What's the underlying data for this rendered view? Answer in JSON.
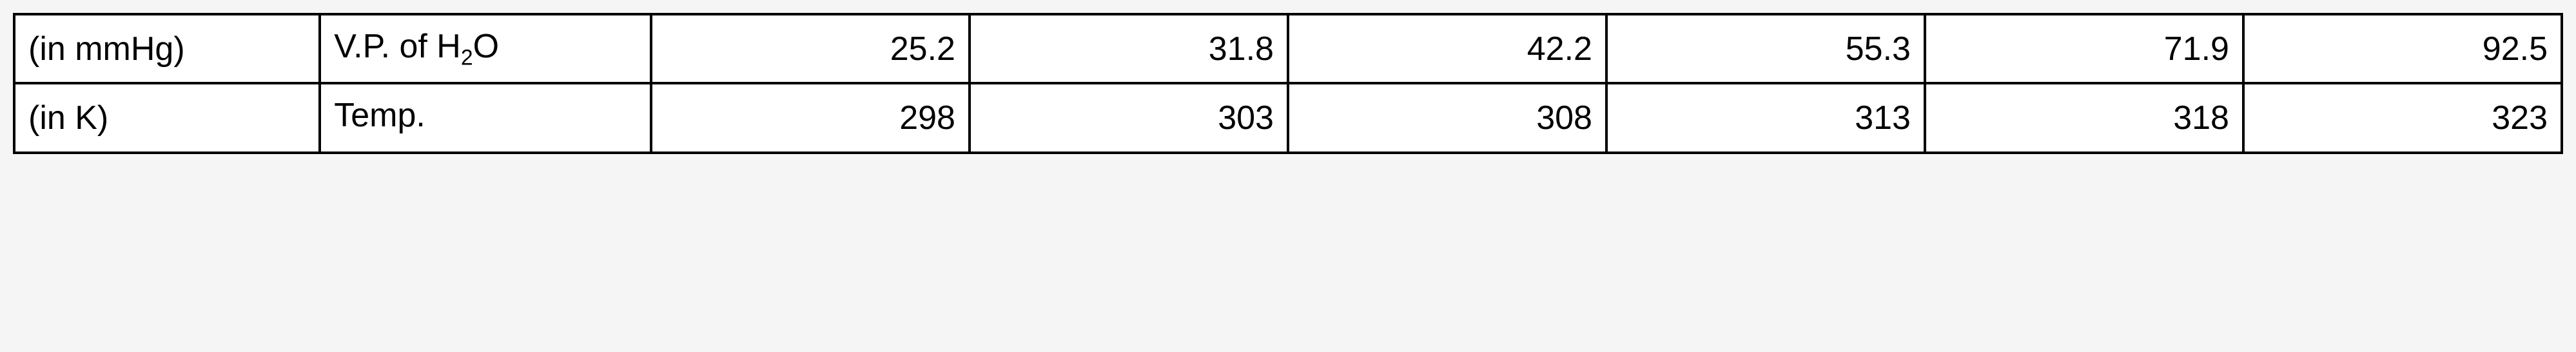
{
  "table": {
    "type": "table",
    "border_color": "#000000",
    "background_color": "#ffffff",
    "text_color": "#000000",
    "font_size_pt": 40,
    "rows": [
      {
        "unit": "(in mmHg)",
        "label_prefix": "V.P. of H",
        "label_sub": "2",
        "label_suffix": "O",
        "values": [
          "25.2",
          "31.8",
          "42.2",
          "55.3",
          "71.9",
          "92.5"
        ]
      },
      {
        "unit": "(in K)",
        "label_prefix": "Temp.",
        "label_sub": "",
        "label_suffix": "",
        "values": [
          "298",
          "303",
          "308",
          "313",
          "318",
          "323"
        ]
      }
    ]
  }
}
